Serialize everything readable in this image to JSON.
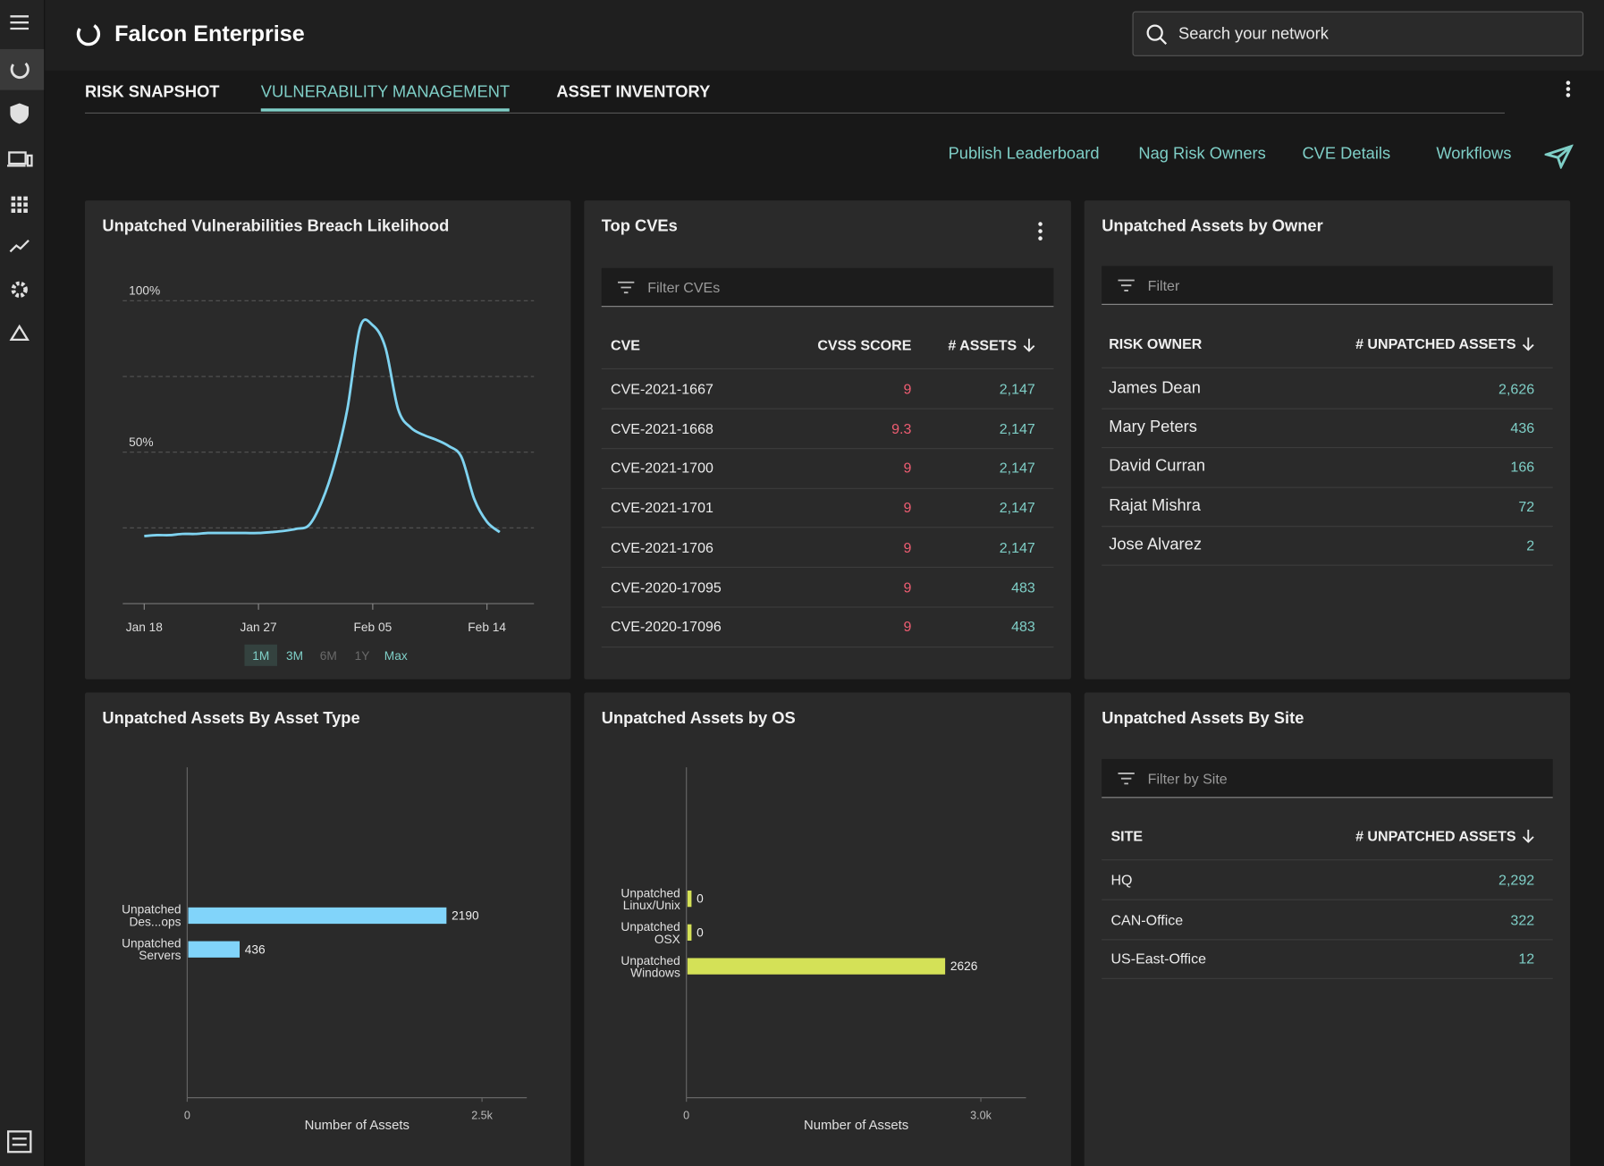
{
  "header": {
    "title": "Falcon Enterprise",
    "search_placeholder": "Search your network"
  },
  "tabs": [
    "RISK SNAPSHOT",
    "VULNERABILITY MANAGEMENT",
    "ASSET INVENTORY"
  ],
  "active_tab": 1,
  "actions": [
    "Publish Leaderboard",
    "Nag Risk Owners",
    "CVE Details",
    "Workflows"
  ],
  "chart_data": [
    {
      "type": "line",
      "title": "Unpatched Vulnerabilities Breach Likelihood",
      "color": "#7fd3f0",
      "x": [
        "Jan 18",
        "Jan 19",
        "Jan 20",
        "Jan 21",
        "Jan 22",
        "Jan 23",
        "Jan 24",
        "Jan 25",
        "Jan 26",
        "Jan 27",
        "Jan 28",
        "Jan 29",
        "Jan 30",
        "Jan 31",
        "Feb 01",
        "Feb 02",
        "Feb 03",
        "Feb 04",
        "Feb 05",
        "Feb 06",
        "Feb 07",
        "Feb 08",
        "Feb 09",
        "Feb 10",
        "Feb 11",
        "Feb 12",
        "Feb 13",
        "Feb 14",
        "Feb 15"
      ],
      "values": [
        22.3,
        22.6,
        22.6,
        23.0,
        23.0,
        23.3,
        23.3,
        23.3,
        23.3,
        23.3,
        23.6,
        24.0,
        24.7,
        26.0,
        33.8,
        46.3,
        64.2,
        91.2,
        91.9,
        84.5,
        64.2,
        58.1,
        55.7,
        54.1,
        52.0,
        48.3,
        34.5,
        27.0,
        23.6
      ],
      "xticks": [
        "Jan 18",
        "Jan 27",
        "Feb 05",
        "Feb 14"
      ],
      "ylim": [
        0,
        100
      ],
      "yticks": [
        {
          "value": 25,
          "label": null
        },
        {
          "value": 50,
          "label": "50%"
        },
        {
          "value": 75,
          "label": null
        },
        {
          "value": 100,
          "label": "100%"
        }
      ],
      "grid": true,
      "range_options": [
        {
          "label": "1M",
          "active": true
        },
        {
          "label": "3M"
        },
        {
          "label": "6M",
          "disabled": true
        },
        {
          "label": "1Y",
          "disabled": true
        },
        {
          "label": "Max"
        }
      ]
    },
    {
      "type": "bar",
      "orientation": "horizontal",
      "title": "Unpatched Assets By Asset Type",
      "color": "#81d4fa",
      "categories": [
        "Unpatched Des...ops",
        "Unpatched Servers"
      ],
      "values": [
        2190,
        436
      ],
      "xlim": [
        0,
        2880
      ],
      "xticks": [
        0,
        {
          "value": 2500,
          "label": "2.5k"
        }
      ],
      "xlabel": "Number of Assets"
    },
    {
      "type": "bar",
      "orientation": "horizontal",
      "title": "Unpatched Assets by OS",
      "color": "#d4e157",
      "categories": [
        "Unpatched Linux/Unix",
        "Unpatched OSX",
        "Unpatched Windows"
      ],
      "values": [
        0,
        0,
        2626
      ],
      "xlim": [
        0,
        3460
      ],
      "xticks": [
        0,
        {
          "value": 3000,
          "label": "3.0k"
        }
      ],
      "xlabel": "Number of Assets"
    }
  ],
  "top_cves": {
    "title": "Top CVEs",
    "filter_placeholder": "Filter CVEs",
    "columns": [
      "CVE",
      "CVSS SCORE",
      "# ASSETS"
    ],
    "rows": [
      [
        "CVE-2021-1667",
        "9",
        "2,147"
      ],
      [
        "CVE-2021-1668",
        "9.3",
        "2,147"
      ],
      [
        "CVE-2021-1700",
        "9",
        "2,147"
      ],
      [
        "CVE-2021-1701",
        "9",
        "2,147"
      ],
      [
        "CVE-2021-1706",
        "9",
        "2,147"
      ],
      [
        "CVE-2020-17095",
        "9",
        "483"
      ],
      [
        "CVE-2020-17096",
        "9",
        "483"
      ]
    ]
  },
  "owners": {
    "title": "Unpatched Assets by Owner",
    "filter_placeholder": "Filter",
    "columns": [
      "RISK OWNER",
      "# UNPATCHED ASSETS"
    ],
    "rows": [
      [
        "James Dean",
        "2,626"
      ],
      [
        "Mary Peters",
        "436"
      ],
      [
        "David Curran",
        "166"
      ],
      [
        "Rajat Mishra",
        "72"
      ],
      [
        "Jose Alvarez",
        "2"
      ]
    ]
  },
  "sites": {
    "title": "Unpatched Assets By Site",
    "filter_placeholder": "Filter by Site",
    "columns": [
      "SITE",
      "# UNPATCHED ASSETS"
    ],
    "rows": [
      [
        "HQ",
        "2,292"
      ],
      [
        "CAN-Office",
        "322"
      ],
      [
        "US-East-Office",
        "12"
      ]
    ]
  }
}
